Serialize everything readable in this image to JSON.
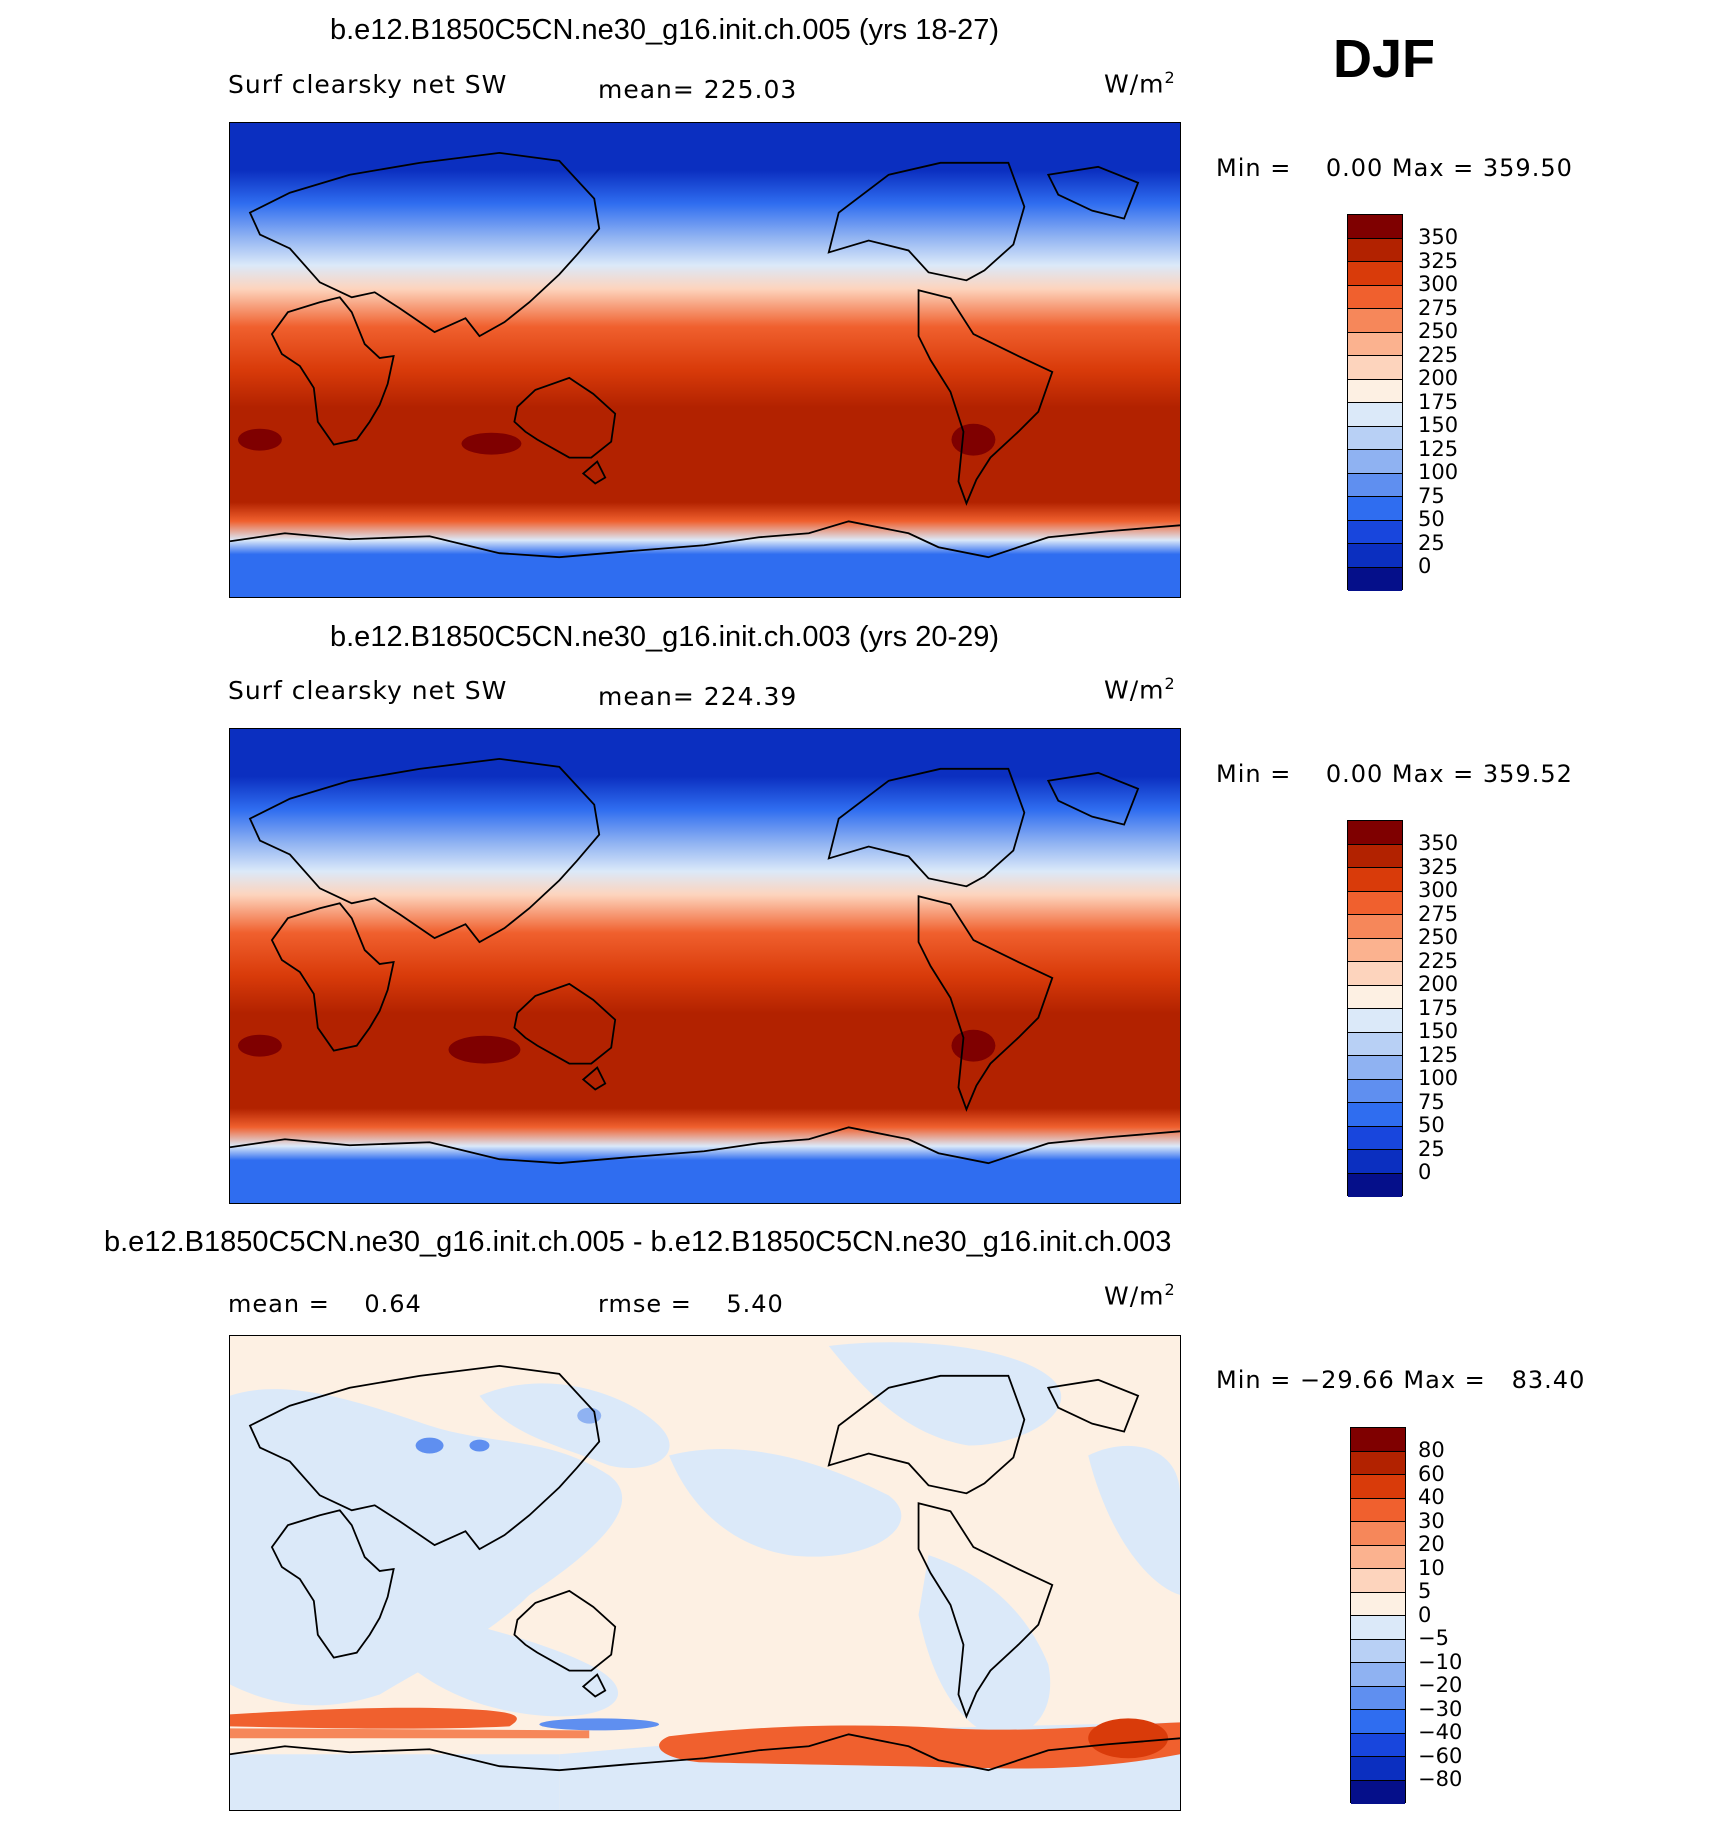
{
  "season": "DJF",
  "panels": [
    {
      "title": "b.e12.B1850C5CN.ne30_g16.init.ch.005 (yrs 18-27)",
      "left_label": "Surf clearsky net SW",
      "center_label": "mean= 225.03",
      "units": "W/m",
      "units_sup": "2",
      "minmax": "Min =    0.00 Max = 359.50",
      "colorbar": {
        "labels": [
          "350",
          "325",
          "300",
          "275",
          "250",
          "225",
          "200",
          "175",
          "150",
          "125",
          "100",
          "75",
          "50",
          "25",
          "0"
        ],
        "colors": [
          "#7f0000",
          "#b22200",
          "#d93b0a",
          "#f0602e",
          "#f6875a",
          "#fbb28f",
          "#fdd4bd",
          "#fdf0e3",
          "#dbe9f9",
          "#b8d0f5",
          "#8fb2f2",
          "#5f8ff0",
          "#2f6df0",
          "#1846dd",
          "#0b2fc0",
          "#050f8a"
        ]
      }
    },
    {
      "title": "b.e12.B1850C5CN.ne30_g16.init.ch.003 (yrs 20-29)",
      "left_label": "Surf clearsky net SW",
      "center_label": "mean= 224.39",
      "units": "W/m",
      "units_sup": "2",
      "minmax": "Min =    0.00 Max = 359.52",
      "colorbar": {
        "labels": [
          "350",
          "325",
          "300",
          "275",
          "250",
          "225",
          "200",
          "175",
          "150",
          "125",
          "100",
          "75",
          "50",
          "25",
          "0"
        ],
        "colors": [
          "#7f0000",
          "#b22200",
          "#d93b0a",
          "#f0602e",
          "#f6875a",
          "#fbb28f",
          "#fdd4bd",
          "#fdf0e3",
          "#dbe9f9",
          "#b8d0f5",
          "#8fb2f2",
          "#5f8ff0",
          "#2f6df0",
          "#1846dd",
          "#0b2fc0",
          "#050f8a"
        ]
      }
    },
    {
      "title": "b.e12.B1850C5CN.ne30_g16.init.ch.005 - b.e12.B1850C5CN.ne30_g16.init.ch.003",
      "left_label": "mean =    0.64",
      "center_label": "rmse =    5.40",
      "units": "W/m",
      "units_sup": "2",
      "minmax": "Min = −29.66 Max =   83.40",
      "colorbar": {
        "labels": [
          "80",
          "60",
          "40",
          "30",
          "20",
          "10",
          "5",
          "0",
          "−5",
          "−10",
          "−20",
          "−30",
          "−40",
          "−60",
          "−80"
        ],
        "colors": [
          "#7f0000",
          "#b22200",
          "#d93b0a",
          "#f0602e",
          "#f6875a",
          "#fbb28f",
          "#fdd4bd",
          "#fdf0e3",
          "#dbe9f9",
          "#b8d0f5",
          "#8fb2f2",
          "#5f8ff0",
          "#2f6df0",
          "#1846dd",
          "#0b2fc0",
          "#050f8a"
        ]
      }
    }
  ]
}
